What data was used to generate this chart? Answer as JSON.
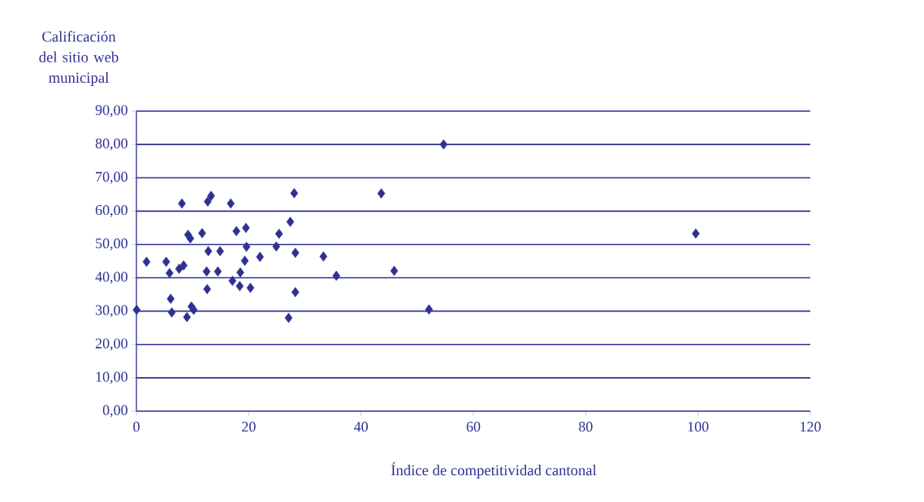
{
  "chart_data": {
    "type": "scatter",
    "xlabel": "Índice de competitividad cantonal",
    "ylabel": "Calificación del sitio web municipal",
    "xlim": [
      0,
      120
    ],
    "xticks": [
      0,
      20,
      40,
      60,
      80,
      100,
      120
    ],
    "ylim": [
      0,
      90
    ],
    "yticks": [
      {
        "value": 0,
        "label": "0,00"
      },
      {
        "value": 10,
        "label": "10,00"
      },
      {
        "value": 20,
        "label": "20,00"
      },
      {
        "value": 30,
        "label": "30,00"
      },
      {
        "value": 40,
        "label": "40,00"
      },
      {
        "value": 50,
        "label": "50,00"
      },
      {
        "value": 60,
        "label": "60,00"
      },
      {
        "value": 70,
        "label": "70,00"
      },
      {
        "value": 80,
        "label": "80,00"
      },
      {
        "value": 90,
        "label": "90,00"
      }
    ],
    "grid": "y",
    "marker": "diamond",
    "series": [
      {
        "color": "#2e3192",
        "x": [
          0.04,
          1.8,
          5.3,
          5.9,
          6.1,
          6.3,
          7.6,
          8.4,
          8.1,
          9.0,
          9.2,
          9.6,
          9.8,
          10.2,
          11.7,
          12.5,
          12.6,
          12.7,
          13.3,
          12.8,
          14.5,
          14.9,
          16.8,
          17.1,
          17.8,
          18.4,
          18.5,
          19.5,
          19.6,
          19.3,
          20.3,
          22.0,
          24.9,
          25.4,
          27.4,
          28.1,
          28.3,
          28.3,
          27.1,
          33.3,
          35.6,
          43.6,
          45.9,
          52.1,
          54.7,
          99.6
        ],
        "values": [
          30.4,
          44.8,
          44.8,
          41.4,
          33.7,
          29.6,
          42.7,
          43.7,
          62.3,
          28.2,
          52.9,
          51.8,
          31.4,
          30.4,
          53.4,
          41.9,
          36.6,
          62.9,
          64.6,
          48.0,
          41.9,
          48.0,
          62.3,
          39.1,
          54.0,
          37.5,
          41.6,
          55.0,
          49.3,
          45.1,
          37.0,
          46.3,
          49.4,
          53.2,
          56.8,
          65.4,
          47.5,
          35.7,
          28.0,
          46.4,
          40.6,
          65.3,
          42.1,
          30.5,
          80.0,
          53.3
        ]
      }
    ]
  }
}
